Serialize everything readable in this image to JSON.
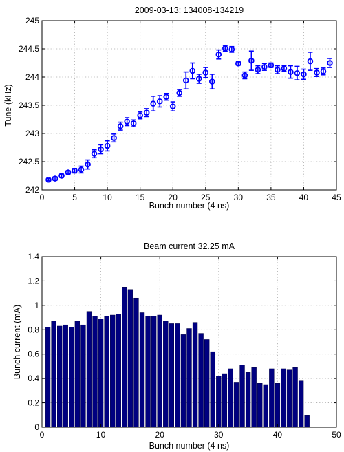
{
  "chart_data": [
    {
      "type": "scatter",
      "title": "2009-03-13: 134008-134219",
      "xlabel": "Bunch number (4 ns)",
      "ylabel": "Tune (kHz)",
      "xlim": [
        0,
        45
      ],
      "ylim": [
        242,
        245
      ],
      "xticks": [
        0,
        5,
        10,
        15,
        20,
        25,
        30,
        35,
        40,
        45
      ],
      "yticks": [
        242,
        242.5,
        243,
        243.5,
        244,
        244.5,
        245
      ],
      "ytick_labels": [
        "242",
        "242.5",
        "243",
        "243.5",
        "244",
        "244.5",
        "245"
      ],
      "grid": true,
      "marker_color": "#0000ff",
      "series": [
        {
          "x": [
            1,
            2,
            3,
            4,
            5,
            6,
            7,
            8,
            9,
            10,
            11,
            12,
            13,
            14,
            15,
            16,
            17,
            18,
            19,
            20,
            21,
            22,
            23,
            24,
            25,
            26,
            27,
            28,
            29,
            30,
            31,
            32,
            33,
            34,
            35,
            36,
            37,
            38,
            39,
            40,
            41,
            42,
            43,
            44
          ],
          "y": [
            242.18,
            242.2,
            242.25,
            242.31,
            242.34,
            242.36,
            242.45,
            242.64,
            242.72,
            242.78,
            242.92,
            243.13,
            243.21,
            243.18,
            243.32,
            243.37,
            243.53,
            243.57,
            243.65,
            243.48,
            243.72,
            243.94,
            244.11,
            243.97,
            244.08,
            243.92,
            244.4,
            244.51,
            244.49,
            244.24,
            244.03,
            244.29,
            244.13,
            244.18,
            244.21,
            244.13,
            244.15,
            244.09,
            244.07,
            244.05,
            244.28,
            244.08,
            244.1,
            244.25
          ],
          "err": [
            0.02,
            0.03,
            0.03,
            0.03,
            0.04,
            0.06,
            0.08,
            0.07,
            0.08,
            0.09,
            0.07,
            0.07,
            0.07,
            0.06,
            0.06,
            0.07,
            0.13,
            0.1,
            0.06,
            0.08,
            0.06,
            0.15,
            0.14,
            0.08,
            0.09,
            0.13,
            0.08,
            0.05,
            0.05,
            0.03,
            0.06,
            0.17,
            0.07,
            0.06,
            0.04,
            0.07,
            0.05,
            0.11,
            0.12,
            0.09,
            0.16,
            0.07,
            0.06,
            0.08
          ]
        }
      ]
    },
    {
      "type": "bar",
      "title": "Beam current 32.25 mA",
      "xlabel": "Bunch number (4 ns)",
      "ylabel": "Bunch current (mA)",
      "xlim": [
        0,
        50
      ],
      "ylim": [
        0,
        1.4
      ],
      "xticks": [
        0,
        10,
        20,
        30,
        40,
        50
      ],
      "yticks": [
        0,
        0.2,
        0.4,
        0.6,
        0.8,
        1,
        1.2,
        1.4
      ],
      "ytick_labels": [
        "0",
        "0.2",
        "0.4",
        "0.6",
        "0.8",
        "1",
        "1.2",
        "1.4"
      ],
      "grid": true,
      "bar_color": "#000080",
      "x": [
        1,
        2,
        3,
        4,
        5,
        6,
        7,
        8,
        9,
        10,
        11,
        12,
        13,
        14,
        15,
        16,
        17,
        18,
        19,
        20,
        21,
        22,
        23,
        24,
        25,
        26,
        27,
        28,
        29,
        30,
        31,
        32,
        33,
        34,
        35,
        36,
        37,
        38,
        39,
        40,
        41,
        42,
        43,
        44,
        45
      ],
      "values": [
        0.82,
        0.87,
        0.83,
        0.84,
        0.82,
        0.87,
        0.84,
        0.95,
        0.91,
        0.89,
        0.91,
        0.92,
        0.93,
        1.15,
        1.13,
        1.06,
        0.94,
        0.91,
        0.91,
        0.92,
        0.87,
        0.85,
        0.85,
        0.76,
        0.81,
        0.86,
        0.77,
        0.72,
        0.62,
        0.42,
        0.44,
        0.48,
        0.37,
        0.51,
        0.45,
        0.49,
        0.36,
        0.35,
        0.48,
        0.36,
        0.48,
        0.47,
        0.49,
        0.38,
        0.1
      ]
    }
  ]
}
